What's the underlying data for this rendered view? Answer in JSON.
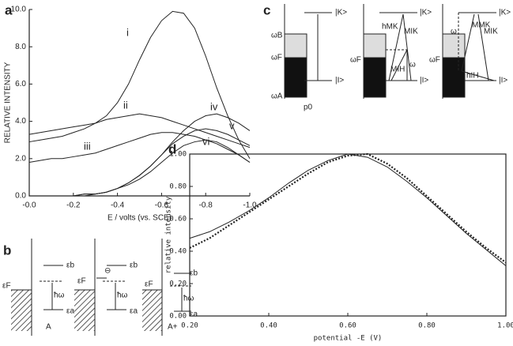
{
  "panel_labels": [
    "a",
    "b",
    "c",
    "d"
  ],
  "chart_data": [
    {
      "type": "line",
      "xlabel": "E / volts (vs. SCE)",
      "ylabel": "RELATIVE INTENSITY",
      "x": [
        0,
        -0.05,
        -0.1,
        -0.15,
        -0.2,
        -0.25,
        -0.3,
        -0.35,
        -0.4,
        -0.45,
        -0.5,
        -0.55,
        -0.6,
        -0.65,
        -0.7,
        -0.75,
        -0.8,
        -0.85,
        -0.9,
        -0.95,
        -1.0
      ],
      "xlim": [
        0,
        -1.0
      ],
      "xticks": [
        {
          "value": 0,
          "label": "-0.0"
        },
        -0.2,
        -0.4,
        -0.6,
        -0.8,
        {
          "value": -1.0,
          "label": "-1.0"
        }
      ],
      "ylim": [
        0,
        10
      ],
      "yticks": [
        {
          "value": 0,
          "label": "0.0"
        },
        {
          "value": 2,
          "label": "2.0"
        },
        {
          "value": 4,
          "label": "4.0"
        },
        {
          "value": 6,
          "label": "6.0"
        },
        {
          "value": 8,
          "label": "8.0"
        },
        {
          "value": 10,
          "label": "10.0"
        }
      ],
      "series": [
        {
          "name": "i",
          "color": "#222",
          "values": [
            2.9,
            3.0,
            3.1,
            3.2,
            3.4,
            3.6,
            3.9,
            4.3,
            5.0,
            6.0,
            7.3,
            8.5,
            9.4,
            9.9,
            9.8,
            9.0,
            7.5,
            5.8,
            4.3,
            3.0,
            2.0
          ]
        },
        {
          "name": "ii",
          "color": "#222",
          "values": [
            3.3,
            3.4,
            3.5,
            3.6,
            3.7,
            3.8,
            3.9,
            4.1,
            4.2,
            4.3,
            4.4,
            4.3,
            4.2,
            4.0,
            3.8,
            3.6,
            3.4,
            3.2,
            3.0,
            2.8,
            2.6
          ]
        },
        {
          "name": "iii",
          "color": "#222",
          "values": [
            1.8,
            1.9,
            2.0,
            2.0,
            2.1,
            2.2,
            2.3,
            2.5,
            2.7,
            2.9,
            3.1,
            3.3,
            3.4,
            3.4,
            3.3,
            3.2,
            3.0,
            2.8,
            2.5,
            2.2,
            1.8
          ]
        },
        {
          "name": "iv",
          "color": "#222",
          "values": [
            0,
            0,
            0,
            0,
            0,
            0.1,
            0.1,
            0.2,
            0.4,
            0.7,
            1.1,
            1.6,
            2.2,
            2.9,
            3.5,
            4.0,
            4.3,
            4.4,
            4.2,
            3.9,
            3.5
          ]
        },
        {
          "name": "v",
          "color": "#222",
          "values": [
            0,
            0,
            0,
            0,
            0,
            0.1,
            0.1,
            0.2,
            0.4,
            0.7,
            1.1,
            1.6,
            2.2,
            2.8,
            3.2,
            3.5,
            3.6,
            3.5,
            3.3,
            3.0,
            2.7
          ]
        },
        {
          "name": "vi",
          "color": "#222",
          "values": [
            0,
            0,
            0,
            0,
            0,
            0,
            0.1,
            0.2,
            0.4,
            0.6,
            0.9,
            1.3,
            1.8,
            2.3,
            2.7,
            2.9,
            3.0,
            2.9,
            2.6,
            2.2,
            1.8
          ]
        }
      ]
    },
    {
      "type": "line",
      "xlabel": "potential -E (V)",
      "ylabel": "relative intensity",
      "x": [
        0.2,
        0.25,
        0.3,
        0.35,
        0.4,
        0.45,
        0.5,
        0.55,
        0.6,
        0.65,
        0.7,
        0.75,
        0.8,
        0.85,
        0.9,
        0.95,
        1.0
      ],
      "xlim": [
        0.2,
        1.0
      ],
      "xticks": [
        {
          "value": 0.2,
          "label": "0.20"
        },
        {
          "value": 0.4,
          "label": "0.40"
        },
        {
          "value": 0.6,
          "label": "0.60"
        },
        {
          "value": 0.8,
          "label": "0.80"
        },
        {
          "value": 1.0,
          "label": "1.00"
        }
      ],
      "ylim": [
        0,
        1
      ],
      "yticks": [
        {
          "value": 0,
          "label": "0.00"
        },
        {
          "value": 0.2,
          "label": "0.20"
        },
        {
          "value": 0.4,
          "label": "0.40"
        },
        {
          "value": 0.6,
          "label": "0.60"
        },
        {
          "value": 0.8,
          "label": "0.80"
        },
        {
          "value": 1.0,
          "label": "1.00"
        }
      ],
      "series": [
        {
          "color": "#222",
          "style": "solid",
          "values": [
            0.48,
            0.52,
            0.58,
            0.65,
            0.73,
            0.82,
            0.9,
            0.96,
            1.0,
            0.98,
            0.92,
            0.83,
            0.73,
            0.62,
            0.51,
            0.41,
            0.31
          ]
        },
        {
          "color": "#222",
          "style": "dotted",
          "values": [
            0.42,
            0.48,
            0.56,
            0.64,
            0.72,
            0.8,
            0.88,
            0.95,
            0.99,
            1.0,
            0.94,
            0.85,
            0.74,
            0.63,
            0.52,
            0.42,
            0.33
          ]
        }
      ]
    }
  ],
  "diagram_b": {
    "labels": [
      "εb",
      "εF",
      "ħω",
      "εa",
      "A",
      "εb",
      "εF",
      "⊖",
      "ħω",
      "εa",
      "εb",
      "εF",
      "ħω",
      "εa",
      "A+"
    ]
  },
  "diagram_c": {
    "labels": [
      "|K>",
      "|I>",
      "ωB",
      "ωF",
      "ωA",
      "p0",
      "|K>",
      "|I>",
      "ωF",
      "hMK",
      "MIK",
      "MIH",
      "ω",
      "|K>",
      "|I>",
      "ωF",
      "ω",
      "MMK",
      "MIK",
      "hIH"
    ]
  }
}
